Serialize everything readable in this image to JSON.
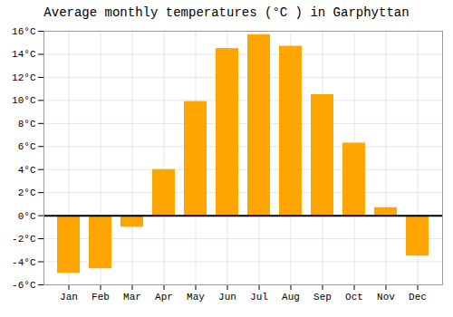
{
  "chart_data": {
    "type": "bar",
    "title": "Average monthly temperatures (°C ) in Garphyttan",
    "categories": [
      "Jan",
      "Feb",
      "Mar",
      "Apr",
      "May",
      "Jun",
      "Jul",
      "Aug",
      "Sep",
      "Oct",
      "Nov",
      "Dec"
    ],
    "values": [
      -5.0,
      -4.6,
      -1.0,
      4.0,
      9.9,
      14.5,
      15.7,
      14.7,
      10.5,
      6.3,
      0.7,
      -3.5
    ],
    "color": "#FFA500",
    "ylim": [
      -6,
      16
    ],
    "yticks": [
      {
        "value": -6,
        "label": "-6°C"
      },
      {
        "value": -4,
        "label": "-4°C"
      },
      {
        "value": -2,
        "label": "-2°C"
      },
      {
        "value": 0,
        "label": "0°C"
      },
      {
        "value": 2,
        "label": "2°C"
      },
      {
        "value": 4,
        "label": "4°C"
      },
      {
        "value": 6,
        "label": "6°C"
      },
      {
        "value": 8,
        "label": "8°C"
      },
      {
        "value": 10,
        "label": "10°C"
      },
      {
        "value": 12,
        "label": "12°C"
      },
      {
        "value": 14,
        "label": "14°C"
      },
      {
        "value": 16,
        "label": "16°C"
      }
    ],
    "grid": true
  }
}
